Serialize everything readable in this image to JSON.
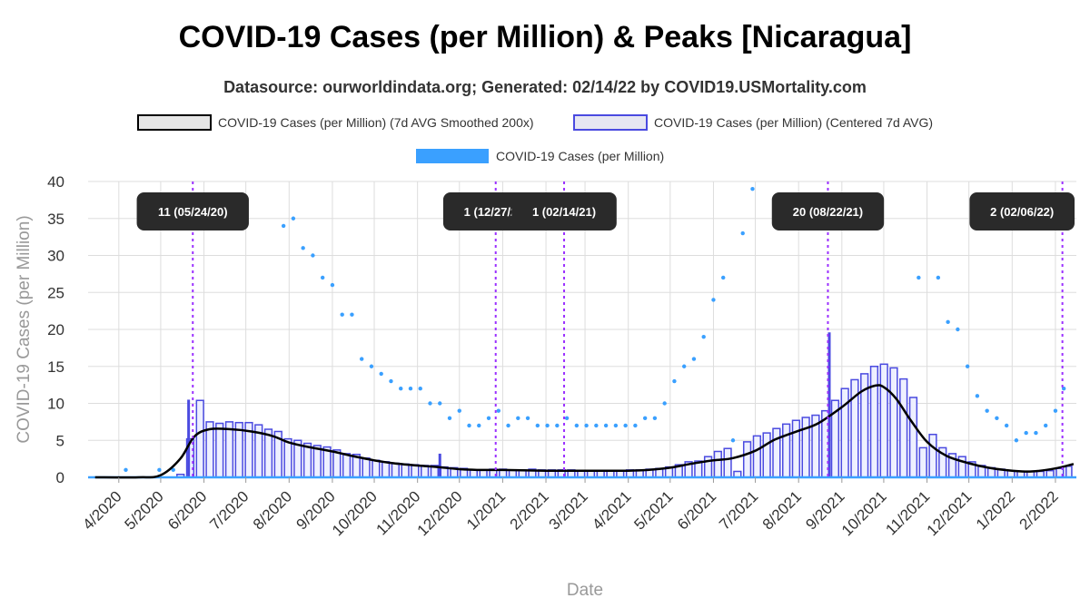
{
  "title": "COVID-19 Cases (per Million) & Peaks [Nicaragua]",
  "subtitle": "Datasource: ourworldindata.org; Generated: 02/14/22 by COVID19.USMortality.com",
  "chart_data": {
    "type": "bar",
    "xlabel": "Date",
    "ylabel": "COVID-19 Cases (per Million)",
    "ylim": [
      0,
      40
    ],
    "yticks": [
      0,
      5,
      10,
      15,
      20,
      25,
      30,
      35,
      40
    ],
    "xlim": [
      "2020-03-10",
      "2022-02-16"
    ],
    "xticks": [
      {
        "date": "2020-04-01",
        "label": "4/2020"
      },
      {
        "date": "2020-05-01",
        "label": "5/2020"
      },
      {
        "date": "2020-06-01",
        "label": "6/2020"
      },
      {
        "date": "2020-07-01",
        "label": "7/2020"
      },
      {
        "date": "2020-08-01",
        "label": "8/2020"
      },
      {
        "date": "2020-09-01",
        "label": "9/2020"
      },
      {
        "date": "2020-10-01",
        "label": "10/2020"
      },
      {
        "date": "2020-11-01",
        "label": "11/2020"
      },
      {
        "date": "2020-12-01",
        "label": "12/2020"
      },
      {
        "date": "2021-01-01",
        "label": "1/2021"
      },
      {
        "date": "2021-02-01",
        "label": "2/2021"
      },
      {
        "date": "2021-03-01",
        "label": "3/2021"
      },
      {
        "date": "2021-04-01",
        "label": "4/2021"
      },
      {
        "date": "2021-05-01",
        "label": "5/2021"
      },
      {
        "date": "2021-06-01",
        "label": "6/2021"
      },
      {
        "date": "2021-07-01",
        "label": "7/2021"
      },
      {
        "date": "2021-08-01",
        "label": "8/2021"
      },
      {
        "date": "2021-09-01",
        "label": "9/2021"
      },
      {
        "date": "2021-10-01",
        "label": "10/2021"
      },
      {
        "date": "2021-11-01",
        "label": "11/2021"
      },
      {
        "date": "2021-12-01",
        "label": "12/2021"
      },
      {
        "date": "2022-01-01",
        "label": "1/2022"
      },
      {
        "date": "2022-02-01",
        "label": "2/2022"
      }
    ],
    "grid": true,
    "legend_position": "top",
    "legend": [
      {
        "label": "COVID-19 Cases (per Million) (7d AVG Smoothed 200x)",
        "style": "box",
        "fill": "#e6e6e6",
        "stroke": "#000000"
      },
      {
        "label": "COVID-19 Cases (per Million) (Centered 7d AVG)",
        "style": "box",
        "fill": "#e6e6f2",
        "stroke": "#4a4ae0"
      },
      {
        "label": "COVID-19 Cases (per Million)",
        "style": "fill",
        "fill": "#3aa0ff",
        "stroke": "#3aa0ff"
      }
    ],
    "colors": {
      "smoothed": "#000000",
      "centered": "#4a4ae0",
      "daily": "#3aa0ff",
      "peak": "#9b30ff",
      "annotation_bg": "#2a2a2a"
    },
    "peaks": [
      {
        "date": "2020-05-24",
        "label": "11 (05/24/20)"
      },
      {
        "date": "2020-12-27",
        "label": "1 (12/27/20)"
      },
      {
        "date": "2021-02-14",
        "label": "1 (02/14/21)"
      },
      {
        "date": "2021-08-22",
        "label": "20 (08/22/21)"
      },
      {
        "date": "2022-02-06",
        "label": "2 (02/06/22)"
      }
    ],
    "series": [
      {
        "name": "COVID-19 Cases (per Million) (7d AVG Smoothed 200x)",
        "type": "line",
        "points": [
          [
            "2020-03-15",
            0
          ],
          [
            "2020-04-15",
            0
          ],
          [
            "2020-05-01",
            0.3
          ],
          [
            "2020-05-15",
            2.5
          ],
          [
            "2020-05-25",
            5.5
          ],
          [
            "2020-06-05",
            6.5
          ],
          [
            "2020-06-20",
            6.5
          ],
          [
            "2020-07-05",
            6.2
          ],
          [
            "2020-07-20",
            5.6
          ],
          [
            "2020-08-01",
            4.7
          ],
          [
            "2020-08-15",
            4.1
          ],
          [
            "2020-09-01",
            3.5
          ],
          [
            "2020-09-15",
            2.9
          ],
          [
            "2020-10-01",
            2.3
          ],
          [
            "2020-10-15",
            1.9
          ],
          [
            "2020-11-01",
            1.6
          ],
          [
            "2020-11-15",
            1.4
          ],
          [
            "2020-12-01",
            1.1
          ],
          [
            "2020-12-15",
            1.0
          ],
          [
            "2021-01-01",
            1.0
          ],
          [
            "2021-02-01",
            0.9
          ],
          [
            "2021-03-01",
            0.9
          ],
          [
            "2021-04-01",
            0.9
          ],
          [
            "2021-04-15",
            1.0
          ],
          [
            "2021-05-01",
            1.3
          ],
          [
            "2021-05-15",
            1.8
          ],
          [
            "2021-06-01",
            2.3
          ],
          [
            "2021-06-15",
            2.6
          ],
          [
            "2021-07-01",
            3.6
          ],
          [
            "2021-07-15",
            5.1
          ],
          [
            "2021-08-01",
            6.3
          ],
          [
            "2021-08-15",
            7.3
          ],
          [
            "2021-09-01",
            9.5
          ],
          [
            "2021-09-15",
            11.6
          ],
          [
            "2021-09-25",
            12.4
          ],
          [
            "2021-10-01",
            12.2
          ],
          [
            "2021-10-10",
            10.6
          ],
          [
            "2021-10-20",
            7.8
          ],
          [
            "2021-11-01",
            4.8
          ],
          [
            "2021-11-15",
            2.9
          ],
          [
            "2021-12-01",
            1.9
          ],
          [
            "2021-12-15",
            1.3
          ],
          [
            "2022-01-01",
            0.9
          ],
          [
            "2022-01-15",
            0.8
          ],
          [
            "2022-02-01",
            1.2
          ],
          [
            "2022-02-14",
            1.8
          ]
        ]
      },
      {
        "name": "COVID-19 Cases (per Million) (Centered 7d AVG)",
        "type": "step",
        "points": [
          [
            "2020-03-15",
            0
          ],
          [
            "2020-05-05",
            0
          ],
          [
            "2020-05-12",
            0.4
          ],
          [
            "2020-05-19",
            5.2
          ],
          [
            "2020-05-26",
            10.4
          ],
          [
            "2020-06-02",
            7.5
          ],
          [
            "2020-06-09",
            7.3
          ],
          [
            "2020-06-16",
            7.5
          ],
          [
            "2020-06-23",
            7.4
          ],
          [
            "2020-06-30",
            7.4
          ],
          [
            "2020-07-07",
            7.1
          ],
          [
            "2020-07-14",
            6.5
          ],
          [
            "2020-07-21",
            6.2
          ],
          [
            "2020-07-28",
            5.2
          ],
          [
            "2020-08-04",
            5.0
          ],
          [
            "2020-08-11",
            4.6
          ],
          [
            "2020-08-18",
            4.3
          ],
          [
            "2020-08-25",
            4.1
          ],
          [
            "2020-09-01",
            3.7
          ],
          [
            "2020-09-08",
            3.2
          ],
          [
            "2020-09-15",
            3.1
          ],
          [
            "2020-09-22",
            2.6
          ],
          [
            "2020-09-29",
            2.3
          ],
          [
            "2020-10-06",
            2.1
          ],
          [
            "2020-10-13",
            1.9
          ],
          [
            "2020-10-20",
            1.8
          ],
          [
            "2020-10-27",
            1.7
          ],
          [
            "2020-11-03",
            1.6
          ],
          [
            "2020-11-10",
            1.6
          ],
          [
            "2020-11-17",
            1.4
          ],
          [
            "2020-11-24",
            1.3
          ],
          [
            "2020-12-01",
            1.2
          ],
          [
            "2020-12-08",
            1.0
          ],
          [
            "2020-12-15",
            1.0
          ],
          [
            "2020-12-22",
            1.1
          ],
          [
            "2020-12-29",
            1.1
          ],
          [
            "2021-01-05",
            1.0
          ],
          [
            "2021-01-12",
            1.0
          ],
          [
            "2021-01-19",
            1.1
          ],
          [
            "2021-01-26",
            1.0
          ],
          [
            "2021-02-02",
            1.0
          ],
          [
            "2021-02-09",
            1.0
          ],
          [
            "2021-02-16",
            1.0
          ],
          [
            "2021-02-23",
            0.9
          ],
          [
            "2021-03-02",
            0.9
          ],
          [
            "2021-03-09",
            0.9
          ],
          [
            "2021-03-16",
            0.9
          ],
          [
            "2021-03-23",
            0.9
          ],
          [
            "2021-03-30",
            1.0
          ],
          [
            "2021-04-06",
            1.0
          ],
          [
            "2021-04-13",
            1.1
          ],
          [
            "2021-04-20",
            1.2
          ],
          [
            "2021-04-27",
            1.4
          ],
          [
            "2021-05-04",
            1.7
          ],
          [
            "2021-05-11",
            2.1
          ],
          [
            "2021-05-18",
            2.2
          ],
          [
            "2021-05-25",
            2.8
          ],
          [
            "2021-06-01",
            3.5
          ],
          [
            "2021-06-08",
            3.9
          ],
          [
            "2021-06-15",
            0.8
          ],
          [
            "2021-06-22",
            4.8
          ],
          [
            "2021-06-29",
            5.6
          ],
          [
            "2021-07-06",
            6.0
          ],
          [
            "2021-07-13",
            6.6
          ],
          [
            "2021-07-20",
            7.2
          ],
          [
            "2021-07-27",
            7.7
          ],
          [
            "2021-08-03",
            8.1
          ],
          [
            "2021-08-10",
            8.4
          ],
          [
            "2021-08-17",
            9.0
          ],
          [
            "2021-08-24",
            10.4
          ],
          [
            "2021-08-31",
            12.0
          ],
          [
            "2021-09-07",
            13.2
          ],
          [
            "2021-09-14",
            14.0
          ],
          [
            "2021-09-21",
            15.0
          ],
          [
            "2021-09-28",
            15.3
          ],
          [
            "2021-10-05",
            14.8
          ],
          [
            "2021-10-12",
            13.3
          ],
          [
            "2021-10-19",
            10.8
          ],
          [
            "2021-10-26",
            4.0
          ],
          [
            "2021-11-02",
            5.8
          ],
          [
            "2021-11-09",
            4.0
          ],
          [
            "2021-11-16",
            3.2
          ],
          [
            "2021-11-23",
            2.8
          ],
          [
            "2021-11-30",
            2.1
          ],
          [
            "2021-12-07",
            1.6
          ],
          [
            "2021-12-14",
            1.3
          ],
          [
            "2021-12-21",
            1.1
          ],
          [
            "2021-12-28",
            0.9
          ],
          [
            "2022-01-04",
            0.8
          ],
          [
            "2022-01-11",
            0.8
          ],
          [
            "2022-01-18",
            0.8
          ],
          [
            "2022-01-25",
            0.9
          ],
          [
            "2022-02-01",
            1.2
          ],
          [
            "2022-02-08",
            1.5
          ],
          [
            "2022-02-14",
            1.8
          ]
        ]
      },
      {
        "name": "COVID-19 Cases (per Million)",
        "type": "scatter",
        "points": [
          [
            "2020-04-06",
            1
          ],
          [
            "2020-04-30",
            1
          ],
          [
            "2020-05-10",
            1
          ],
          [
            "2020-05-21",
            34
          ],
          [
            "2020-07-28",
            34
          ],
          [
            "2020-08-04",
            35
          ],
          [
            "2020-08-11",
            31
          ],
          [
            "2020-08-18",
            30
          ],
          [
            "2020-08-25",
            27
          ],
          [
            "2020-09-01",
            26
          ],
          [
            "2020-09-08",
            22
          ],
          [
            "2020-09-15",
            22
          ],
          [
            "2020-09-22",
            16
          ],
          [
            "2020-09-29",
            15
          ],
          [
            "2020-10-06",
            14
          ],
          [
            "2020-10-13",
            13
          ],
          [
            "2020-10-20",
            12
          ],
          [
            "2020-10-27",
            12
          ],
          [
            "2020-11-03",
            12
          ],
          [
            "2020-11-10",
            10
          ],
          [
            "2020-11-17",
            10
          ],
          [
            "2020-11-24",
            8
          ],
          [
            "2020-12-01",
            9
          ],
          [
            "2020-12-08",
            7
          ],
          [
            "2020-12-15",
            7
          ],
          [
            "2020-12-22",
            8
          ],
          [
            "2020-12-29",
            9
          ],
          [
            "2021-01-05",
            7
          ],
          [
            "2021-01-12",
            8
          ],
          [
            "2021-01-19",
            8
          ],
          [
            "2021-01-26",
            7
          ],
          [
            "2021-02-02",
            7
          ],
          [
            "2021-02-09",
            7
          ],
          [
            "2021-02-16",
            8
          ],
          [
            "2021-02-23",
            7
          ],
          [
            "2021-03-02",
            7
          ],
          [
            "2021-03-09",
            7
          ],
          [
            "2021-03-16",
            7
          ],
          [
            "2021-03-23",
            7
          ],
          [
            "2021-03-30",
            7
          ],
          [
            "2021-04-06",
            7
          ],
          [
            "2021-04-13",
            8
          ],
          [
            "2021-04-20",
            8
          ],
          [
            "2021-04-27",
            10
          ],
          [
            "2021-05-04",
            13
          ],
          [
            "2021-05-11",
            15
          ],
          [
            "2021-05-18",
            16
          ],
          [
            "2021-05-25",
            19
          ],
          [
            "2021-06-01",
            24
          ],
          [
            "2021-06-08",
            27
          ],
          [
            "2021-06-15",
            5
          ],
          [
            "2021-06-22",
            33
          ],
          [
            "2021-06-29",
            39
          ],
          [
            "2021-10-26",
            27
          ],
          [
            "2021-11-09",
            27
          ],
          [
            "2021-11-16",
            21
          ],
          [
            "2021-11-23",
            20
          ],
          [
            "2021-11-30",
            15
          ],
          [
            "2021-12-07",
            11
          ],
          [
            "2021-12-14",
            9
          ],
          [
            "2021-12-21",
            8
          ],
          [
            "2021-12-28",
            7
          ],
          [
            "2022-01-04",
            5
          ],
          [
            "2022-01-11",
            6
          ],
          [
            "2022-01-18",
            6
          ],
          [
            "2022-01-25",
            7
          ],
          [
            "2022-02-01",
            9
          ],
          [
            "2022-02-07",
            12
          ]
        ]
      }
    ],
    "spikes": [
      {
        "date": "2020-05-21",
        "value": 10.5
      },
      {
        "date": "2020-11-17",
        "value": 3.2
      },
      {
        "date": "2021-08-23",
        "value": 19.6
      }
    ]
  }
}
